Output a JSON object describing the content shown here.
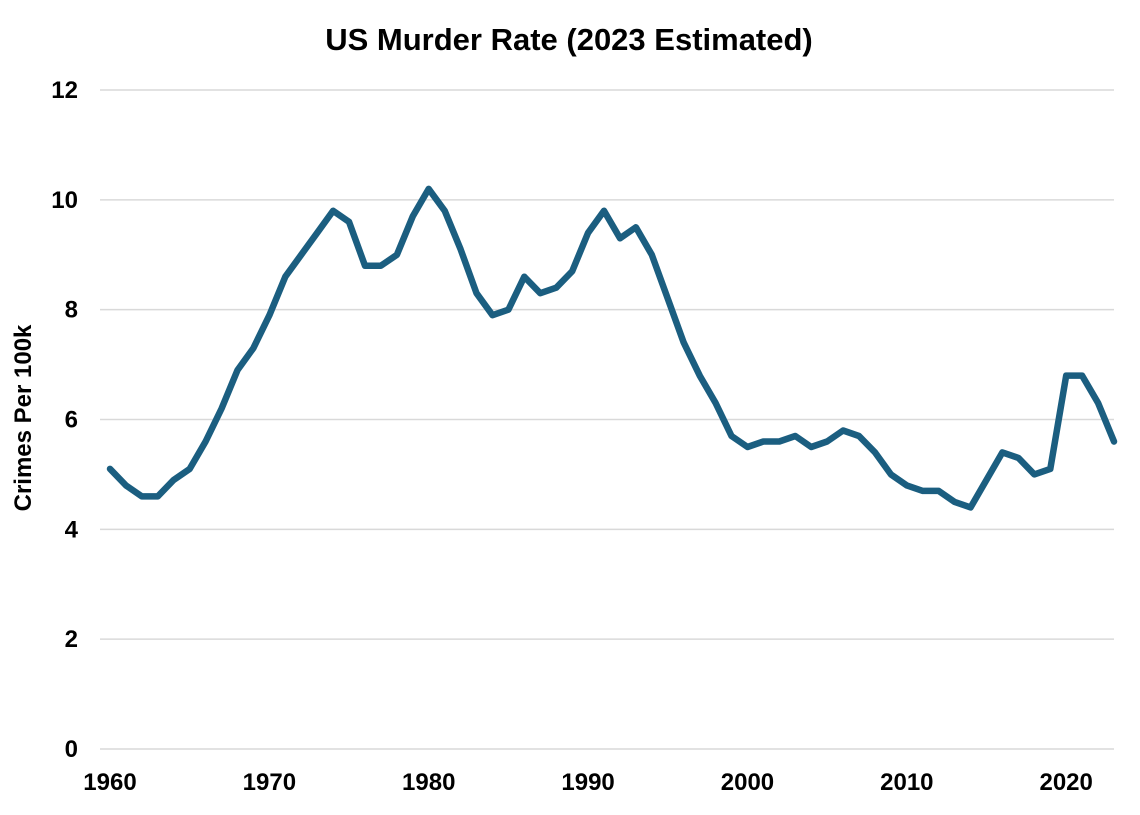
{
  "chart_data": {
    "type": "line",
    "title": "US Murder Rate (2023 Estimated)",
    "xlabel": "",
    "ylabel": "Crimes Per 100k",
    "xlim": [
      1960,
      2023
    ],
    "ylim": [
      0,
      12
    ],
    "xticks": [
      1960,
      1970,
      1980,
      1990,
      2000,
      2010,
      2020
    ],
    "yticks": [
      0,
      2,
      4,
      6,
      8,
      10,
      12
    ],
    "grid": "horizontal",
    "legend": "none",
    "line_color": "#1b5e80",
    "series": [
      {
        "x": [
          1960,
          1961,
          1962,
          1963,
          1964,
          1965,
          1966,
          1967,
          1968,
          1969,
          1970,
          1971,
          1972,
          1973,
          1974,
          1975,
          1976,
          1977,
          1978,
          1979,
          1980,
          1981,
          1982,
          1983,
          1984,
          1985,
          1986,
          1987,
          1988,
          1989,
          1990,
          1991,
          1992,
          1993,
          1994,
          1995,
          1996,
          1997,
          1998,
          1999,
          2000,
          2001,
          2002,
          2003,
          2004,
          2005,
          2006,
          2007,
          2008,
          2009,
          2010,
          2011,
          2012,
          2013,
          2014,
          2015,
          2016,
          2017,
          2018,
          2019,
          2020,
          2021,
          2022,
          2023
        ],
        "values": [
          5.1,
          4.8,
          4.6,
          4.6,
          4.9,
          5.1,
          5.6,
          6.2,
          6.9,
          7.3,
          7.9,
          8.6,
          9.0,
          9.4,
          9.8,
          9.6,
          8.8,
          8.8,
          9.0,
          9.7,
          10.2,
          9.8,
          9.1,
          8.3,
          7.9,
          8.0,
          8.6,
          8.3,
          8.4,
          8.7,
          9.4,
          9.8,
          9.3,
          9.5,
          9.0,
          8.2,
          7.4,
          6.8,
          6.3,
          5.7,
          5.5,
          5.6,
          5.6,
          5.7,
          5.5,
          5.6,
          5.8,
          5.7,
          5.4,
          5.0,
          4.8,
          4.7,
          4.7,
          4.5,
          4.4,
          4.9,
          5.4,
          5.3,
          5.0,
          5.1,
          6.8,
          6.8,
          6.3,
          5.6
        ]
      }
    ]
  }
}
